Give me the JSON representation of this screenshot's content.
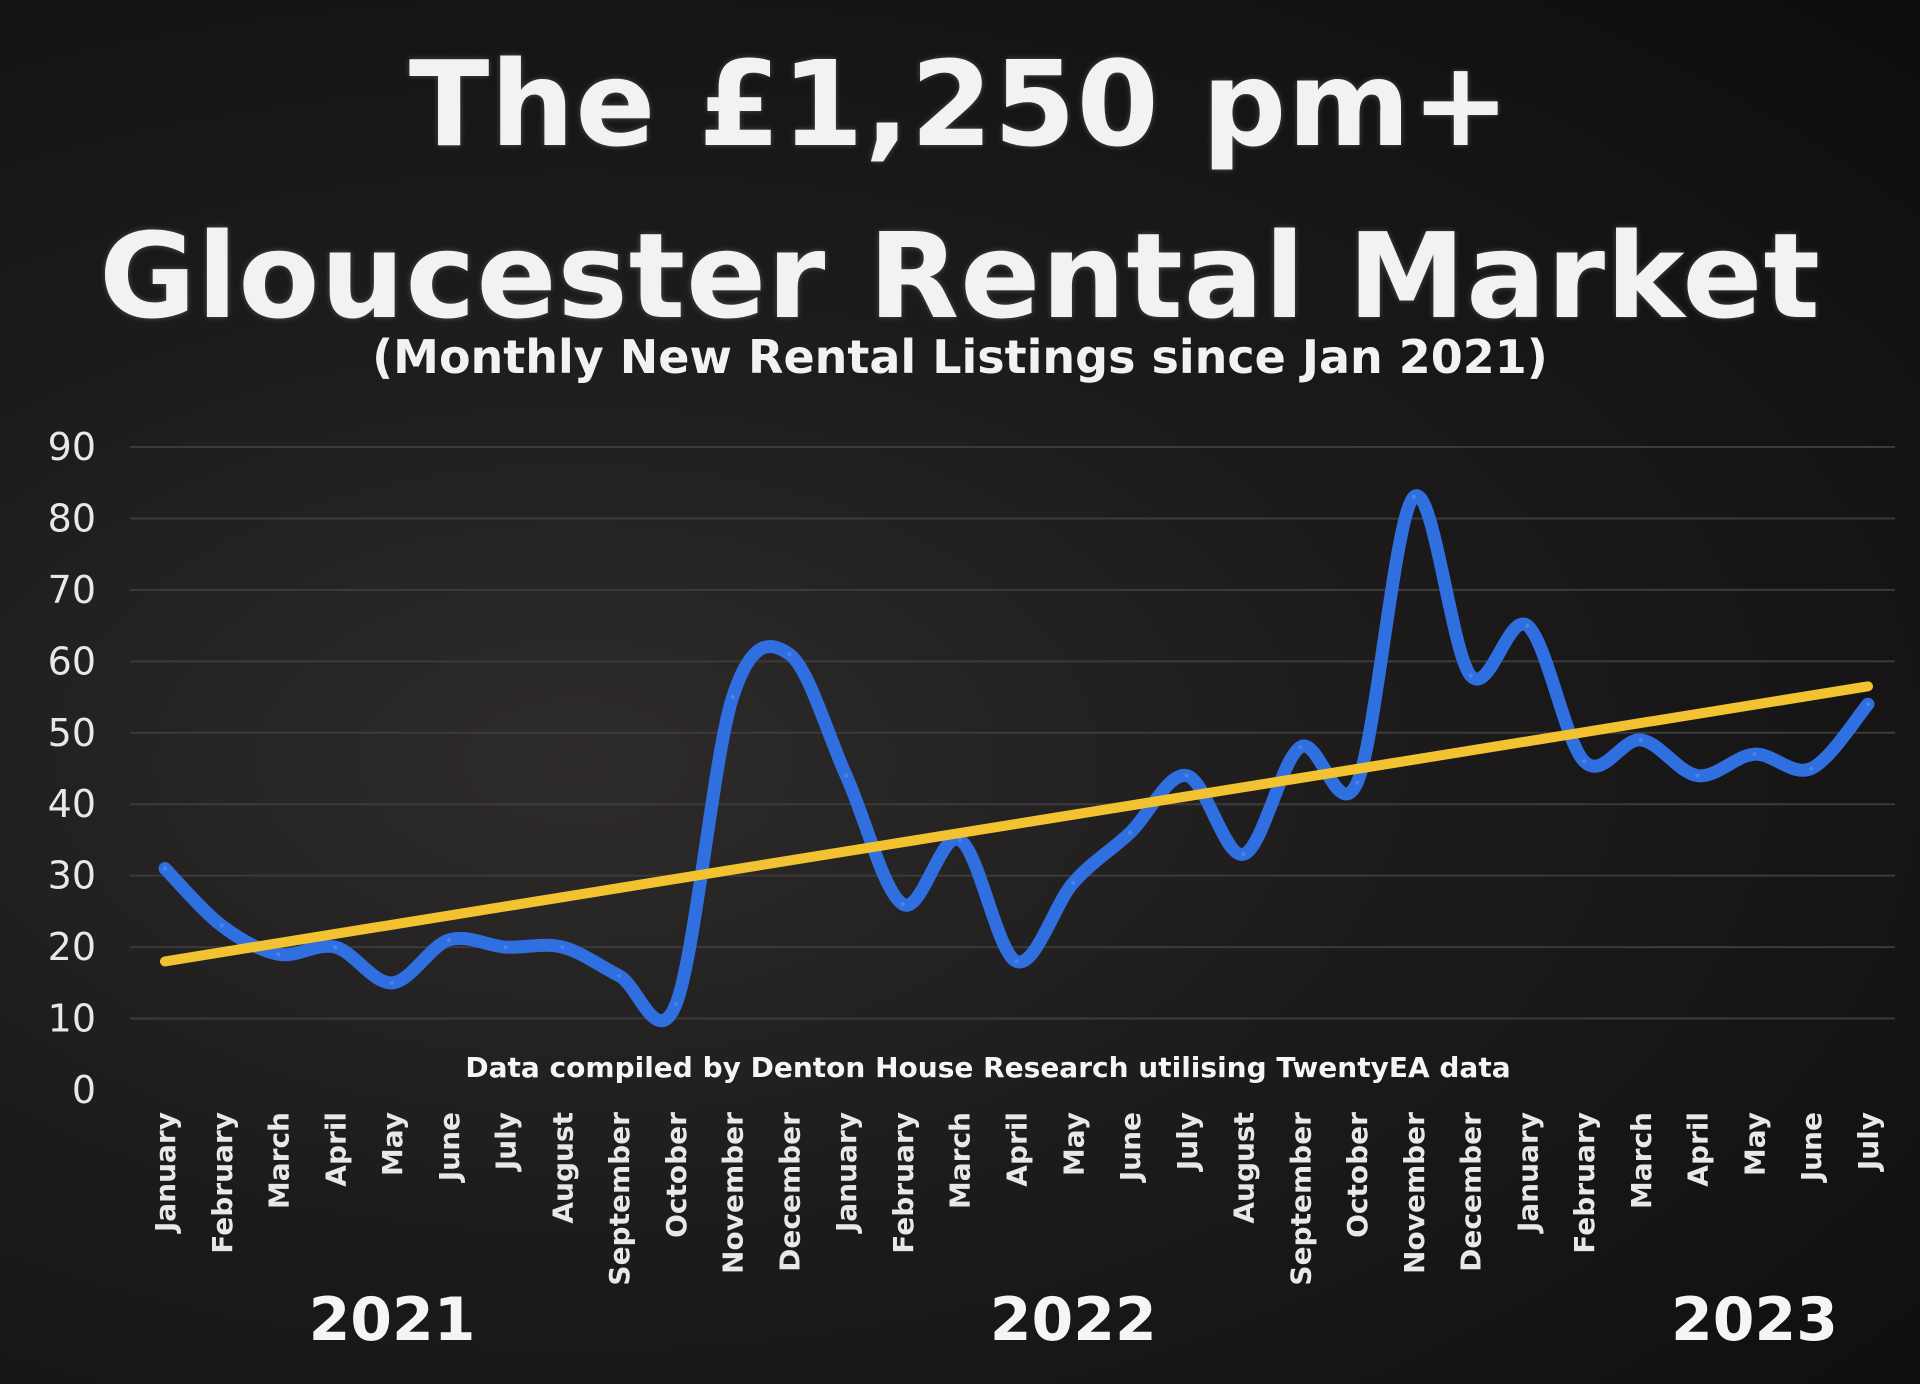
{
  "title_lines": [
    "The £1,250 pm+",
    "Gloucester Rental Market"
  ],
  "subtitle": "(Monthly New Rental Listings since Jan 2021)",
  "colors": {
    "series": "#2f6fe0",
    "trend": "#f2c230",
    "text": "#f2f2f2",
    "grid": "#3c3a3a"
  },
  "chart_data": {
    "type": "line",
    "title": "The £1,250 pm+ Gloucester Rental Market",
    "subtitle": "(Monthly New Rental Listings since Jan 2021)",
    "xlabel": "",
    "ylabel": "",
    "ylim": [
      0,
      90
    ],
    "yticks": [
      0,
      10,
      20,
      30,
      40,
      50,
      60,
      70,
      80,
      90
    ],
    "grid": true,
    "categories": [
      "January",
      "February",
      "March",
      "April",
      "May",
      "June",
      "July",
      "August",
      "September",
      "October",
      "November",
      "December",
      "January",
      "February",
      "March",
      "April",
      "May",
      "June",
      "July",
      "August",
      "September",
      "October",
      "November",
      "December",
      "January",
      "February",
      "March",
      "April",
      "May",
      "June",
      "July"
    ],
    "year_labels": [
      {
        "label": "2021",
        "center_index": 4
      },
      {
        "label": "2022",
        "center_index": 16
      },
      {
        "label": "2023",
        "center_index": 28
      }
    ],
    "series": [
      {
        "values": [
          31,
          23,
          19,
          20,
          15,
          21,
          20,
          20,
          16,
          12,
          55,
          61,
          44,
          26,
          35,
          18,
          29,
          36,
          44,
          33,
          48,
          43,
          83,
          58,
          65,
          46,
          49,
          44,
          47,
          45,
          54
        ]
      },
      {
        "trendline": true,
        "start": 18,
        "end": 56.5
      }
    ],
    "annotation": "Data compiled by Denton House Research utilising TwentyEA data"
  }
}
